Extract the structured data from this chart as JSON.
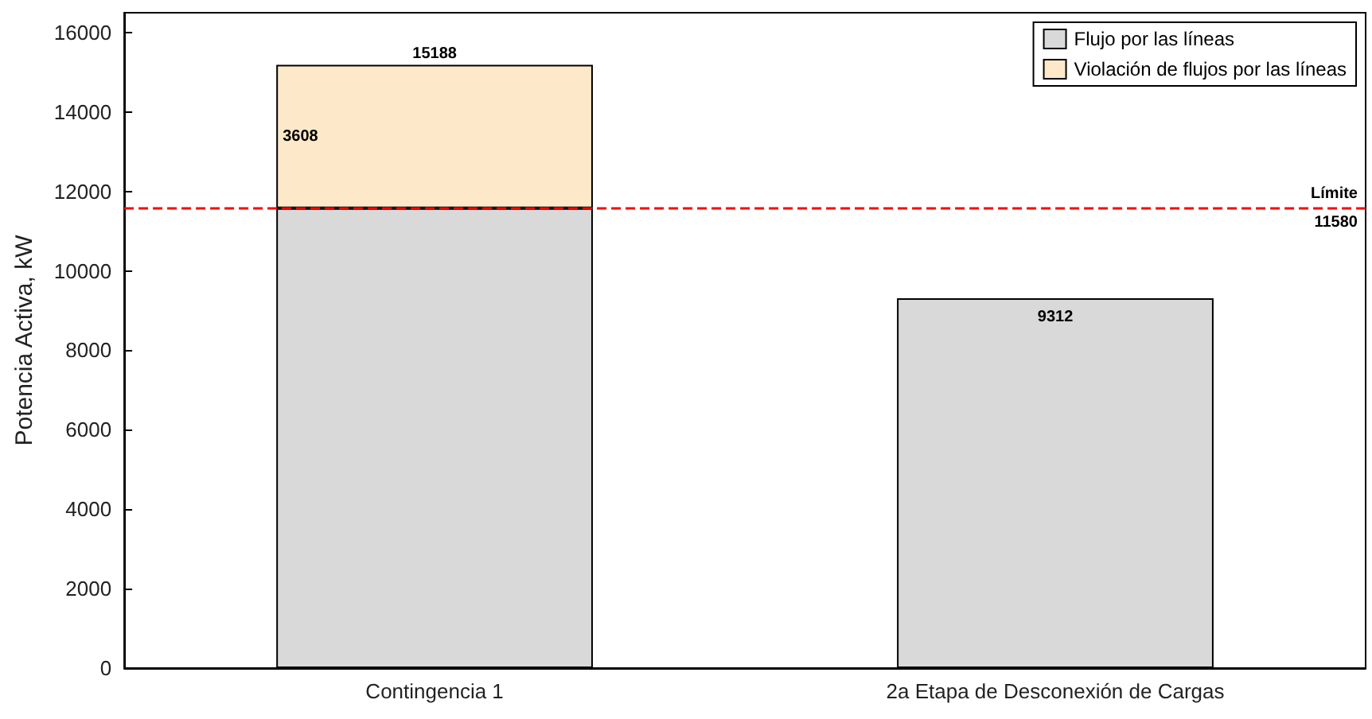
{
  "chart_data": {
    "type": "bar",
    "stacked": true,
    "ylabel": "Potencia Activa, kW",
    "categories": [
      "Contingencia 1",
      "2a Etapa de Desconexión de Cargas"
    ],
    "series": [
      {
        "name": "Flujo por las líneas",
        "color": "#d9d9d9",
        "values": [
          11580,
          9312
        ],
        "value_labels": [
          null,
          "9312"
        ]
      },
      {
        "name": "Violación de flujos por las líneas",
        "color": "#fde9c9",
        "values": [
          3608,
          null
        ],
        "value_labels": [
          "3608",
          null
        ]
      }
    ],
    "totals": [
      "15188",
      null
    ],
    "ylim": [
      0,
      16500
    ],
    "yticks": [
      0,
      2000,
      4000,
      6000,
      8000,
      10000,
      12000,
      14000,
      16000
    ],
    "ref_lines": [
      {
        "axis": "y",
        "value": 11580,
        "label": "Límite\n11580",
        "color": "#ff0000",
        "line_style": "dashed"
      }
    ],
    "grid": false,
    "legend": "top right"
  }
}
